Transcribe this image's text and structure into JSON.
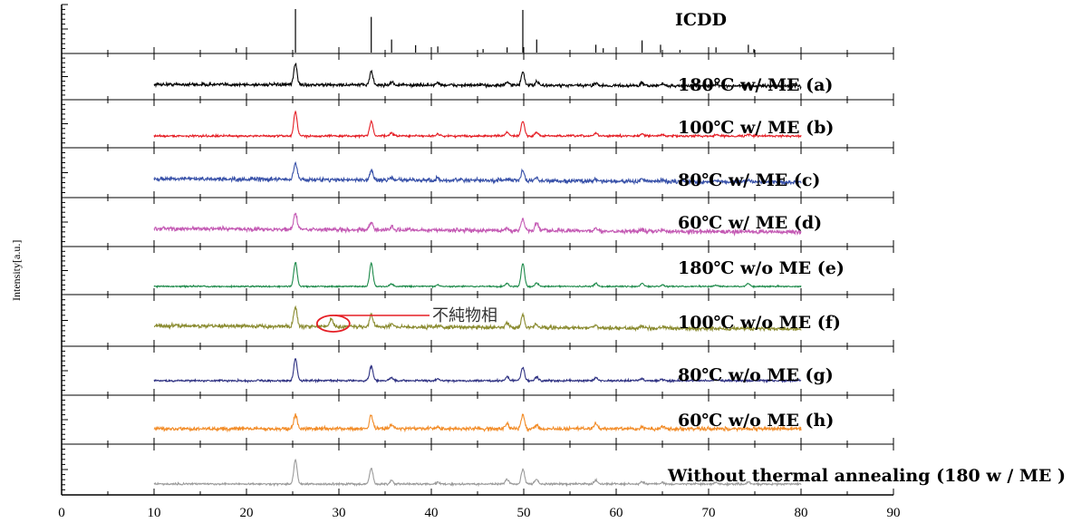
{
  "chart_data": {
    "type": "line",
    "title": "",
    "xlabel": "",
    "ylabel": "Intensity[a.u.]",
    "xlim": [
      0,
      90
    ],
    "xticks": [
      "0",
      "10",
      "20",
      "30",
      "40",
      "50",
      "60",
      "70",
      "80",
      "90"
    ],
    "grid": false,
    "reference": {
      "name": "ICDD",
      "peaks": [
        {
          "x": 18.9,
          "h": 0.1
        },
        {
          "x": 25.3,
          "h": 1.0
        },
        {
          "x": 33.5,
          "h": 0.82
        },
        {
          "x": 35.7,
          "h": 0.3
        },
        {
          "x": 38.3,
          "h": 0.17
        },
        {
          "x": 40.7,
          "h": 0.14
        },
        {
          "x": 45.6,
          "h": 0.08
        },
        {
          "x": 48.2,
          "h": 0.12
        },
        {
          "x": 49.9,
          "h": 0.98
        },
        {
          "x": 51.4,
          "h": 0.3
        },
        {
          "x": 57.8,
          "h": 0.18
        },
        {
          "x": 58.6,
          "h": 0.1
        },
        {
          "x": 62.8,
          "h": 0.28
        },
        {
          "x": 64.8,
          "h": 0.18
        },
        {
          "x": 66.9,
          "h": 0.06
        },
        {
          "x": 70.8,
          "h": 0.12
        },
        {
          "x": 74.3,
          "h": 0.18
        },
        {
          "x": 74.9,
          "h": 0.08
        }
      ]
    },
    "series": [
      {
        "name": "180℃ w/ ME (a)",
        "color": "#000000",
        "x_range": [
          10,
          80
        ],
        "trend": "slightly decreasing",
        "noise": 0.11,
        "peaks": [
          [
            25.3,
            0.85
          ],
          [
            33.5,
            0.55
          ],
          [
            35.7,
            0.12
          ],
          [
            40.7,
            0.1
          ],
          [
            48.2,
            0.12
          ],
          [
            49.9,
            0.55
          ],
          [
            51.4,
            0.15
          ],
          [
            57.8,
            0.12
          ],
          [
            62.8,
            0.1
          ],
          [
            65.0,
            0.08
          ],
          [
            70.8,
            0.06
          ],
          [
            74.3,
            0.08
          ]
        ]
      },
      {
        "name": "100℃ w/ ME (b)",
        "color": "#e51e25",
        "x_range": [
          10,
          80
        ],
        "trend": "flat",
        "noise": 0.07,
        "peaks": [
          [
            25.3,
            1.0
          ],
          [
            33.5,
            0.6
          ],
          [
            35.7,
            0.12
          ],
          [
            40.7,
            0.08
          ],
          [
            48.2,
            0.15
          ],
          [
            49.9,
            0.6
          ],
          [
            51.4,
            0.15
          ],
          [
            57.8,
            0.12
          ],
          [
            62.8,
            0.1
          ],
          [
            65.0,
            0.06
          ],
          [
            70.8,
            0.05
          ],
          [
            74.3,
            0.07
          ]
        ]
      },
      {
        "name": "80℃ w/ ME (c)",
        "color": "#3750a8",
        "x_range": [
          10,
          80
        ],
        "trend": "decreasing",
        "noise": 0.14,
        "peaks": [
          [
            25.3,
            0.7
          ],
          [
            33.5,
            0.4
          ],
          [
            35.7,
            0.1
          ],
          [
            40.7,
            0.08
          ],
          [
            48.2,
            0.1
          ],
          [
            49.9,
            0.4
          ],
          [
            51.4,
            0.12
          ],
          [
            57.8,
            0.1
          ],
          [
            62.8,
            0.09
          ],
          [
            65.0,
            0.06
          ],
          [
            70.8,
            0.05
          ],
          [
            74.3,
            0.06
          ]
        ]
      },
      {
        "name": "60℃ w/ ME (d)",
        "color": "#c45ab4",
        "x_range": [
          10,
          80
        ],
        "trend": "decreasing",
        "noise": 0.14,
        "peaks": [
          [
            25.3,
            0.65
          ],
          [
            33.5,
            0.3
          ],
          [
            35.7,
            0.1
          ],
          [
            48.2,
            0.1
          ],
          [
            49.9,
            0.45
          ],
          [
            51.4,
            0.3
          ],
          [
            57.8,
            0.12
          ],
          [
            62.8,
            0.1
          ],
          [
            65.0,
            0.06
          ],
          [
            74.3,
            0.05
          ]
        ]
      },
      {
        "name": "180℃ w/o ME (e)",
        "color": "#1d8a4a",
        "x_range": [
          10,
          80
        ],
        "trend": "flat",
        "noise": 0.05,
        "peaks": [
          [
            25.3,
            1.0
          ],
          [
            33.5,
            0.95
          ],
          [
            35.7,
            0.1
          ],
          [
            40.7,
            0.06
          ],
          [
            48.2,
            0.12
          ],
          [
            49.9,
            0.95
          ],
          [
            51.4,
            0.15
          ],
          [
            57.8,
            0.12
          ],
          [
            62.8,
            0.12
          ],
          [
            65.0,
            0.06
          ],
          [
            70.8,
            0.06
          ],
          [
            74.3,
            0.12
          ]
        ]
      },
      {
        "name": "100℃ w/o ME (f)",
        "color": "#8a8b30",
        "x_range": [
          10,
          80
        ],
        "trend": "decreasing",
        "noise": 0.13,
        "peaks": [
          [
            25.3,
            0.8
          ],
          [
            29.2,
            0.32
          ],
          [
            33.5,
            0.5
          ],
          [
            35.7,
            0.12
          ],
          [
            40.7,
            0.08
          ],
          [
            48.2,
            0.2
          ],
          [
            49.9,
            0.5
          ],
          [
            51.4,
            0.12
          ],
          [
            57.8,
            0.12
          ],
          [
            62.8,
            0.08
          ],
          [
            65.0,
            0.06
          ]
        ]
      },
      {
        "name": "80℃ w/o ME (g)",
        "color": "#2e3182",
        "x_range": [
          10,
          80
        ],
        "trend": "flat",
        "noise": 0.07,
        "peaks": [
          [
            25.3,
            0.9
          ],
          [
            33.5,
            0.6
          ],
          [
            35.7,
            0.12
          ],
          [
            40.7,
            0.08
          ],
          [
            48.2,
            0.15
          ],
          [
            49.9,
            0.55
          ],
          [
            51.4,
            0.15
          ],
          [
            57.8,
            0.12
          ],
          [
            62.8,
            0.08
          ],
          [
            65.0,
            0.06
          ],
          [
            70.8,
            0.05
          ]
        ]
      },
      {
        "name": "60℃ w/o ME (h)",
        "color": "#f28c28",
        "x_range": [
          10,
          80
        ],
        "trend": "flat",
        "noise": 0.13,
        "peaks": [
          [
            25.3,
            0.6
          ],
          [
            33.5,
            0.55
          ],
          [
            35.7,
            0.15
          ],
          [
            40.7,
            0.06
          ],
          [
            48.2,
            0.2
          ],
          [
            49.9,
            0.55
          ],
          [
            51.4,
            0.15
          ],
          [
            57.8,
            0.2
          ],
          [
            62.8,
            0.08
          ],
          [
            65.0,
            0.06
          ]
        ]
      },
      {
        "name": "Without thermal annealing (180 w / ME )",
        "color": "#9b9b9b",
        "x_range": [
          10,
          80
        ],
        "trend": "flat",
        "noise": 0.07,
        "peaks": [
          [
            25.3,
            1.0
          ],
          [
            33.5,
            0.65
          ],
          [
            35.7,
            0.15
          ],
          [
            40.7,
            0.08
          ],
          [
            48.2,
            0.2
          ],
          [
            49.9,
            0.6
          ],
          [
            51.4,
            0.2
          ],
          [
            57.8,
            0.15
          ],
          [
            62.8,
            0.1
          ],
          [
            65.0,
            0.06
          ],
          [
            70.8,
            0.06
          ],
          [
            74.3,
            0.08
          ]
        ]
      }
    ],
    "annotations": [
      {
        "text": "不純物相",
        "x": 29.2,
        "series": "100℃ w/o ME (f)"
      }
    ]
  }
}
